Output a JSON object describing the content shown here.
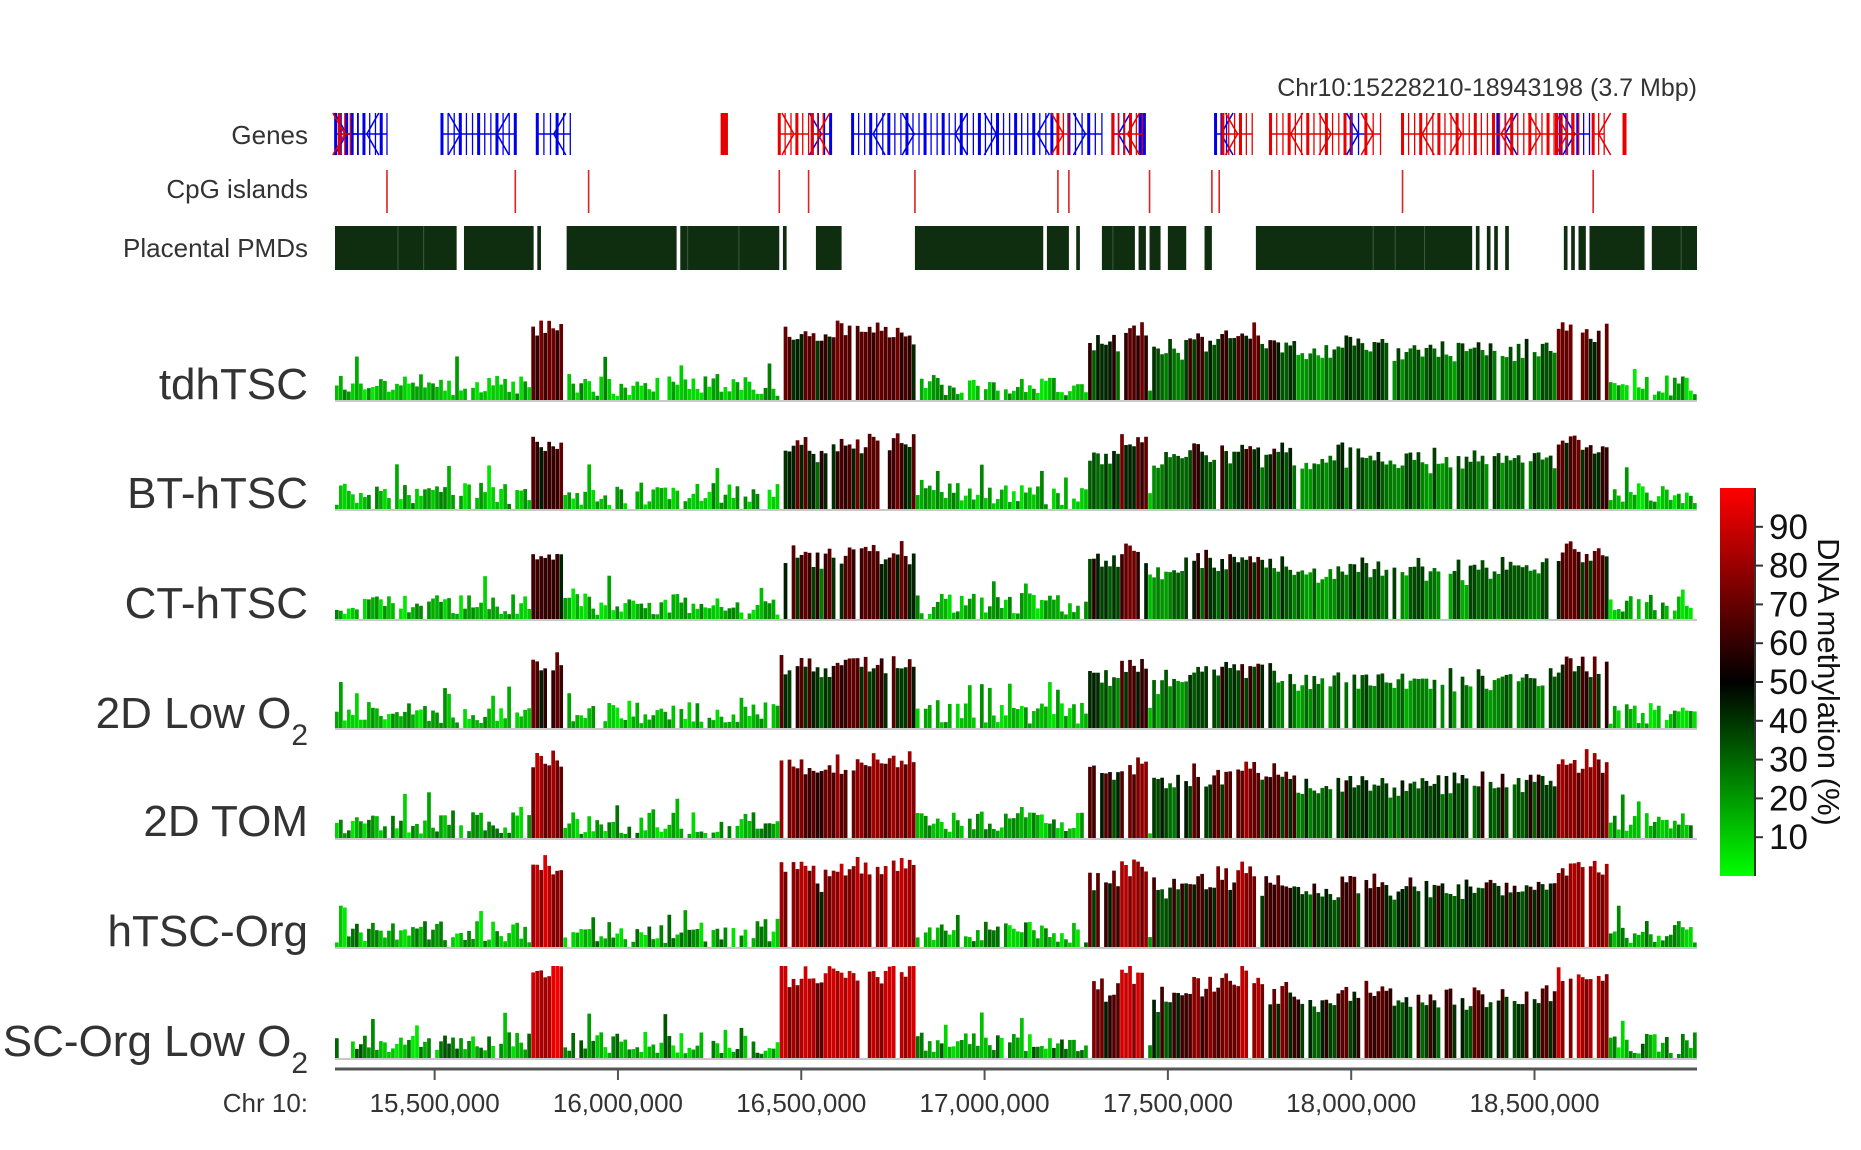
{
  "chart_data": {
    "type": "heatmap",
    "region_label": "Chr10:15228210-18943198 (3.7 Mbp)",
    "x_axis_label": "Chr 10:",
    "xlim": [
      15228210,
      18943198
    ],
    "x_ticks": [
      15500000,
      16000000,
      16500000,
      17000000,
      17500000,
      18000000,
      18500000
    ],
    "x_tick_labels": [
      "15,500,000",
      "16,000,000",
      "16,500,000",
      "17,000,000",
      "17,500,000",
      "18,000,000",
      "18,500,000"
    ],
    "annotation_tracks": {
      "genes": {
        "label": "Genes",
        "blue_blocks": [
          [
            15230000,
            15290000
          ],
          [
            15260000,
            15370000
          ],
          [
            15520000,
            15720000
          ],
          [
            15780000,
            15870000
          ],
          [
            16530000,
            16580000
          ],
          [
            16640000,
            17200000
          ],
          [
            17230000,
            17320000
          ],
          [
            17350000,
            17380000
          ],
          [
            17420000,
            17440000
          ],
          [
            17630000,
            17660000
          ],
          [
            18000000,
            18040000
          ],
          [
            18400000,
            18440000
          ],
          [
            18570000,
            18650000
          ]
        ],
        "red_blocks": [
          [
            15240000,
            15270000
          ],
          [
            16280000,
            16300000
          ],
          [
            16440000,
            16520000
          ],
          [
            16530000,
            16560000
          ],
          [
            17200000,
            17230000
          ],
          [
            17350000,
            17430000
          ],
          [
            17650000,
            17730000
          ],
          [
            17780000,
            18000000
          ],
          [
            18040000,
            18080000
          ],
          [
            18140000,
            18570000
          ],
          [
            18560000,
            18620000
          ],
          [
            18660000,
            18690000
          ],
          [
            18740000,
            18750000
          ]
        ]
      },
      "cpg_islands": {
        "label": "CpG islands",
        "positions": [
          15370000,
          15720000,
          15920000,
          16440000,
          16520000,
          16810000,
          17200000,
          17230000,
          17450000,
          17620000,
          17640000,
          18140000,
          18660000
        ]
      },
      "placental_pmds": {
        "label": "Placental PMDs",
        "blocks": [
          [
            15228210,
            15560000
          ],
          [
            15580000,
            15770000
          ],
          [
            15780000,
            15790000
          ],
          [
            15860000,
            16160000
          ],
          [
            16170000,
            16440000
          ],
          [
            16450000,
            16460000
          ],
          [
            16540000,
            16610000
          ],
          [
            16810000,
            17160000
          ],
          [
            17170000,
            17230000
          ],
          [
            17250000,
            17260000
          ],
          [
            17320000,
            17410000
          ],
          [
            17420000,
            17440000
          ],
          [
            17450000,
            17480000
          ],
          [
            17500000,
            17550000
          ],
          [
            17600000,
            17620000
          ],
          [
            17740000,
            18330000
          ],
          [
            18340000,
            18350000
          ],
          [
            18370000,
            18380000
          ],
          [
            18390000,
            18400000
          ],
          [
            18420000,
            18430000
          ],
          [
            18580000,
            18590000
          ],
          [
            18600000,
            18610000
          ],
          [
            18620000,
            18640000
          ],
          [
            18650000,
            18800000
          ],
          [
            18820000,
            18943198
          ]
        ]
      }
    },
    "tracks": [
      "tdhTSC",
      "BT-hTSC",
      "CT-hTSC",
      "2D Low O",
      "2D TOM",
      "hTSC-Org",
      "SC-Org Low O"
    ],
    "track_subscripts": [
      "",
      "",
      "",
      "2",
      "",
      "",
      "2"
    ],
    "track_overall_level": [
      0.8,
      0.78,
      0.75,
      0.72,
      0.95,
      1.05,
      1.12
    ],
    "methylation_blocks": [
      {
        "start": 15760000,
        "end": 15850000,
        "level": 78
      },
      {
        "start": 16440000,
        "end": 16530000,
        "level": 70
      },
      {
        "start": 16530000,
        "end": 16560000,
        "level": 52
      },
      {
        "start": 16560000,
        "end": 16810000,
        "level": 72
      },
      {
        "start": 17280000,
        "end": 17360000,
        "level": 52
      },
      {
        "start": 17360000,
        "end": 17440000,
        "level": 75
      },
      {
        "start": 17450000,
        "end": 17550000,
        "level": 42
      },
      {
        "start": 17550000,
        "end": 17680000,
        "level": 55
      },
      {
        "start": 17680000,
        "end": 17750000,
        "level": 72
      },
      {
        "start": 17750000,
        "end": 17850000,
        "level": 52
      },
      {
        "start": 17850000,
        "end": 17950000,
        "level": 38
      },
      {
        "start": 17950000,
        "end": 18100000,
        "level": 48
      },
      {
        "start": 18100000,
        "end": 18330000,
        "level": 40
      },
      {
        "start": 18330000,
        "end": 18560000,
        "level": 45
      },
      {
        "start": 18560000,
        "end": 18700000,
        "level": 72
      }
    ],
    "colorbar": {
      "label": "DNA methylation (%)",
      "ticks": [
        10,
        20,
        30,
        40,
        50,
        60,
        70,
        80,
        90
      ],
      "range": [
        0,
        100
      ],
      "color_low": "#00ff00",
      "color_mid": "#000000",
      "color_high": "#ff0000"
    }
  }
}
